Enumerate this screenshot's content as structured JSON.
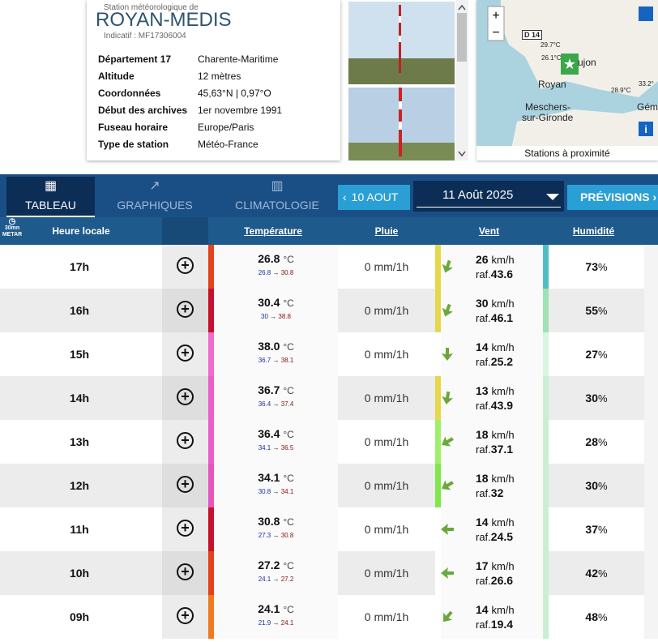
{
  "station": {
    "subtitle": "Station météorologique de",
    "name": "ROYAN-MEDIS",
    "code": "Indicatif : MF17306004",
    "info": [
      [
        "Département 17",
        "Charente-Maritime"
      ],
      [
        "Altitude",
        "12 mètres"
      ],
      [
        "Coordonnées",
        "45,63°N | 0,97°O"
      ],
      [
        "Début des archives",
        "1er novembre 1991"
      ],
      [
        "Fuseau horaire",
        "Europe/Paris"
      ],
      [
        "Type de station",
        "Météo-France"
      ]
    ]
  },
  "map": {
    "labels": [
      "D 14",
      "29.7°C",
      "26.1°C",
      "Royan",
      "ujon",
      "33.2°",
      "28.9°C",
      "Meschers-",
      "sur-Gironde",
      "Gém"
    ],
    "footer": "Stations à proximité"
  },
  "nav": {
    "tabs": [
      "TABLEAU",
      "GRAPHIQUES",
      "CLIMATOLOGIE"
    ],
    "prev": "10 AOUT",
    "date": "11 Août 2025",
    "next": "PRÉVISIONS"
  },
  "table": {
    "header": {
      "badge_top": "30mn",
      "badge_bottom": "METAR",
      "hour": "Heure locale",
      "temp": "Température",
      "rain": "Pluie",
      "wind": "Vent",
      "humidity": "Humidité"
    },
    "units": {
      "temp": "°C",
      "rain": "mm/1h",
      "wind": "km/h",
      "gust": "raf.",
      "humidity": "%",
      "arrow": "→"
    },
    "rows": [
      {
        "hour": "17h",
        "temp": "26.8",
        "min": "26.8",
        "max": "30.8",
        "rain": 0,
        "wind": 26,
        "gust": 43.6,
        "humidity": 73,
        "temp_color": "#e4441c",
        "wind_color": "#e6d84a",
        "hum_color": "#4fbfc4",
        "dir": 200
      },
      {
        "hour": "16h",
        "temp": "30.4",
        "min": "30",
        "max": "38.8",
        "rain": 0,
        "wind": 30,
        "gust": 46.1,
        "humidity": 55,
        "temp_color": "#c8102e",
        "wind_color": "#e6d84a",
        "hum_color": "#9fe2b4",
        "dir": 200
      },
      {
        "hour": "15h",
        "temp": "38.0",
        "min": "36.7",
        "max": "38.1",
        "rain": 0,
        "wind": 14,
        "gust": 25.2,
        "humidity": 27,
        "temp_color": "#f06ad0",
        "wind_color": "#ffffff",
        "hum_color": "#d9f4df",
        "dir": 180
      },
      {
        "hour": "14h",
        "temp": "36.7",
        "min": "36.4",
        "max": "37.4",
        "rain": 0,
        "wind": 13,
        "gust": 43.9,
        "humidity": 30,
        "temp_color": "#ec5fca",
        "wind_color": "#e6d84a",
        "hum_color": "#c9efd2",
        "dir": 190
      },
      {
        "hour": "13h",
        "temp": "36.4",
        "min": "34.1",
        "max": "36.5",
        "rain": 0,
        "wind": 18,
        "gust": 37.1,
        "humidity": 28,
        "temp_color": "#ec5fca",
        "wind_color": "#9ef06a",
        "hum_color": "#c9efd2",
        "dir": 240
      },
      {
        "hour": "12h",
        "temp": "34.1",
        "min": "30.8",
        "max": "34.1",
        "rain": 0,
        "wind": 18,
        "gust": 32,
        "humidity": 30,
        "temp_color": "#e455c0",
        "wind_color": "#7ee84a",
        "hum_color": "#c9efd2",
        "dir": 240
      },
      {
        "hour": "11h",
        "temp": "30.8",
        "min": "27.3",
        "max": "30.8",
        "rain": 0,
        "wind": 14,
        "gust": 24.5,
        "humidity": 37,
        "temp_color": "#c8102e",
        "wind_color": "#ffffff",
        "hum_color": "#c9efd2",
        "dir": 270
      },
      {
        "hour": "10h",
        "temp": "27.2",
        "min": "24.1",
        "max": "27.2",
        "rain": 0,
        "wind": 17,
        "gust": 26.6,
        "humidity": 42,
        "temp_color": "#e4401a",
        "wind_color": "#ffffff",
        "hum_color": "#c9efd2",
        "dir": 270
      },
      {
        "hour": "09h",
        "temp": "24.1",
        "min": "21.9",
        "max": "24.1",
        "rain": 0,
        "wind": 14,
        "gust": 19.4,
        "humidity": 48,
        "temp_color": "#f07a20",
        "wind_color": "#ffffff",
        "hum_color": "#c9efd2",
        "dir": 220
      }
    ]
  }
}
